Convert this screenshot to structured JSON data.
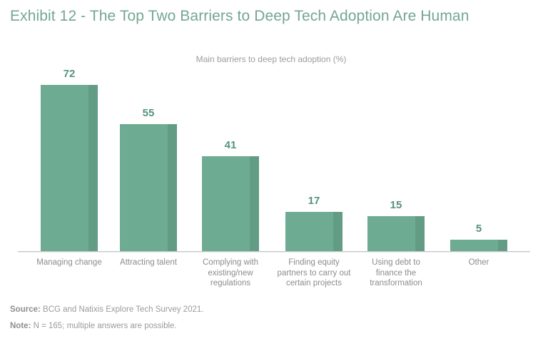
{
  "exhibit": {
    "title": "Exhibit 12 - The Top Two Barriers to Deep Tech Adoption Are Human"
  },
  "chart_data": {
    "type": "bar",
    "title": "Main barriers to deep tech adoption (%)",
    "categories": [
      "Managing change",
      "Attracting talent",
      "Complying with existing/new regulations",
      "Finding equity partners to carry out certain projects",
      "Using debt to finance the transformation",
      "Other"
    ],
    "values": [
      72,
      55,
      41,
      17,
      15,
      5
    ],
    "label_lines": [
      [
        "Managing change"
      ],
      [
        "Attracting talent"
      ],
      [
        "Complying with",
        "existing/new",
        "regulations"
      ],
      [
        "Finding equity",
        "partners to carry out",
        "certain projects"
      ],
      [
        "Using debt to",
        "finance the",
        "transformation"
      ],
      [
        "Other"
      ]
    ],
    "data_labels": true,
    "xlabel": "",
    "ylabel": "",
    "ylim": [
      0,
      80
    ],
    "grid": false,
    "legend_position": "none",
    "bar_color": "#6dab93",
    "bar_shade_color": "#639c84",
    "value_label_color": "#55947b",
    "axis_line_color": "#c6c6c6",
    "category_label_color": "#8c8c8c",
    "title_color": "#74a791"
  },
  "footer": {
    "source_label": "Source:",
    "source_text": " BCG and Natixis Explore Tech Survey 2021.",
    "note_label": "Note:",
    "note_text": " N = 165; multiple answers are possible."
  }
}
